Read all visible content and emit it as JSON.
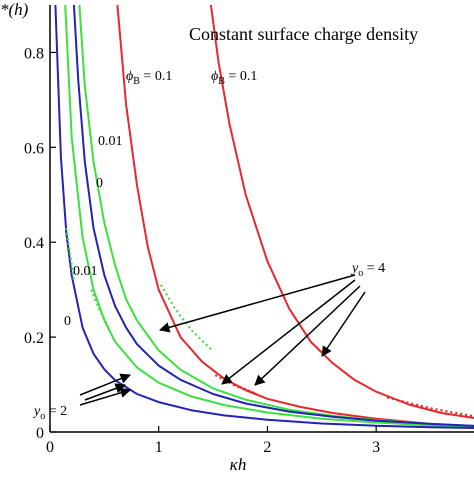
{
  "chart_data": {
    "type": "line",
    "title": "Constant surface charge density",
    "xlabel": "κh",
    "ylabel": "*(h)",
    "xlim": [
      0,
      4
    ],
    "ylim": [
      0,
      0.9
    ],
    "xticks": [
      "0",
      "1",
      "2",
      "3"
    ],
    "yticks": [
      "0",
      "0.2",
      "0.4",
      "0.6",
      "0.8"
    ],
    "grid": false,
    "series": [
      {
        "color": "#e8282e",
        "style": "solid",
        "x": [
          0.62,
          0.7,
          0.8,
          0.9,
          1.0,
          1.2,
          1.4,
          1.6,
          1.8,
          2.0,
          2.3,
          2.6,
          3.0,
          3.5,
          4.0
        ],
        "y": [
          0.9,
          0.69,
          0.52,
          0.39,
          0.3,
          0.2,
          0.148,
          0.113,
          0.088,
          0.07,
          0.053,
          0.04,
          0.028,
          0.017,
          0.011
        ]
      },
      {
        "color": "#e8282e",
        "style": "solid",
        "x": [
          1.48,
          1.55,
          1.65,
          1.8,
          2.0,
          2.2,
          2.4,
          2.6,
          2.8,
          3.0,
          3.3,
          3.6,
          4.0
        ],
        "y": [
          0.9,
          0.78,
          0.65,
          0.5,
          0.36,
          0.26,
          0.19,
          0.145,
          0.11,
          0.085,
          0.058,
          0.04,
          0.026
        ]
      },
      {
        "color": "#3ee03e",
        "style": "solid",
        "x": [
          0.27,
          0.32,
          0.4,
          0.5,
          0.6,
          0.7,
          0.8,
          1.0,
          1.2,
          1.5,
          1.8,
          2.2,
          2.6,
          3.0,
          3.5,
          4.0
        ],
        "y": [
          0.9,
          0.73,
          0.57,
          0.44,
          0.35,
          0.28,
          0.235,
          0.172,
          0.131,
          0.092,
          0.068,
          0.047,
          0.034,
          0.025,
          0.017,
          0.012
        ]
      },
      {
        "color": "#3ee03e",
        "style": "solid",
        "x": [
          0.14,
          0.2,
          0.3,
          0.4,
          0.5,
          0.6,
          0.8,
          1.0,
          1.3,
          1.6,
          2.0,
          2.5,
          3.0,
          3.5,
          4.0
        ],
        "y": [
          0.9,
          0.62,
          0.41,
          0.3,
          0.235,
          0.19,
          0.136,
          0.104,
          0.075,
          0.057,
          0.041,
          0.028,
          0.02,
          0.014,
          0.011
        ]
      },
      {
        "color": "#2323b5",
        "style": "solid",
        "x": [
          0.22,
          0.26,
          0.32,
          0.4,
          0.5,
          0.6,
          0.7,
          0.8,
          1.0,
          1.2,
          1.5,
          1.8,
          2.2,
          2.6,
          3.0,
          3.5,
          4.0
        ],
        "y": [
          0.9,
          0.74,
          0.57,
          0.43,
          0.33,
          0.265,
          0.22,
          0.185,
          0.14,
          0.11,
          0.08,
          0.06,
          0.043,
          0.032,
          0.024,
          0.017,
          0.012
        ]
      },
      {
        "color": "#2323b5",
        "style": "solid",
        "x": [
          0.05,
          0.1,
          0.15,
          0.2,
          0.3,
          0.4,
          0.5,
          0.6,
          0.8,
          1.0,
          1.3,
          1.6,
          2.0,
          2.5,
          3.0,
          3.5,
          4.0
        ],
        "y": [
          0.9,
          0.58,
          0.42,
          0.33,
          0.22,
          0.165,
          0.132,
          0.109,
          0.08,
          0.063,
          0.046,
          0.035,
          0.026,
          0.018,
          0.013,
          0.01,
          0.008
        ]
      },
      {
        "color": "#e8282e",
        "style": "dotted",
        "x": [
          1.5,
          1.7,
          2.0,
          2.3
        ],
        "y": [
          0.12,
          0.096,
          0.07,
          0.05
        ]
      },
      {
        "color": "#e8282e",
        "style": "dotted",
        "x": [
          3.1,
          3.5,
          4.0
        ],
        "y": [
          0.07,
          0.048,
          0.03
        ]
      },
      {
        "color": "#3ee03e",
        "style": "dotted",
        "x": [
          0.38,
          0.5,
          0.7,
          0.9,
          1.0,
          1.2,
          1.5
        ],
        "y": [
          0.3,
          0.225,
          0.16,
          0.125,
          0.31,
          0.23,
          0.16
        ]
      },
      {
        "color": "#3ee03e",
        "style": "dotted",
        "x": [
          0.2,
          0.3,
          0.5,
          0.8,
          1.2
        ],
        "y": [
          0.2,
          0.14,
          0.09,
          0.06,
          0.04
        ]
      }
    ],
    "annotations": [
      {
        "text": "ϕ",
        "sub": "B",
        "value": " = 0.1"
      },
      {
        "text": "ϕ",
        "sub": "B",
        "value": " = 0.1"
      },
      {
        "text": "0.01"
      },
      {
        "text": "0"
      },
      {
        "text": "0.01"
      },
      {
        "text": "0"
      },
      {
        "text": "y",
        "sub": "o",
        "value": " = 4"
      },
      {
        "text": "y",
        "sub": "o",
        "value": " = 2"
      }
    ]
  }
}
